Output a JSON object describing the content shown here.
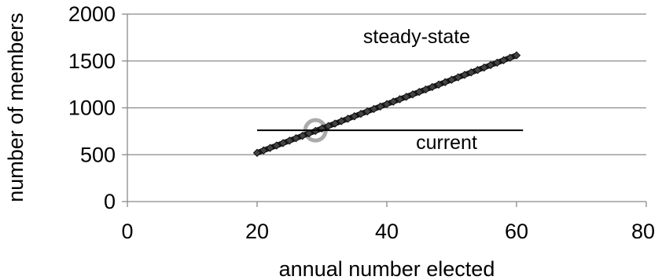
{
  "chart_data": {
    "type": "line",
    "xlabel": "annual number elected",
    "ylabel": "number of members",
    "xlim": [
      0,
      80
    ],
    "ylim": [
      0,
      2000
    ],
    "x_ticks": [
      "0",
      "20",
      "40",
      "60",
      "80"
    ],
    "y_ticks": [
      "0",
      "500",
      "1000",
      "1500",
      "2000"
    ],
    "grid": "horizontal",
    "series": [
      {
        "name": "steady-state",
        "x": [
          20,
          21,
          22,
          23,
          24,
          25,
          26,
          27,
          28,
          29,
          30,
          31,
          32,
          33,
          34,
          35,
          36,
          37,
          38,
          39,
          40,
          41,
          42,
          43,
          44,
          45,
          46,
          47,
          48,
          49,
          50,
          51,
          52,
          53,
          54,
          55,
          56,
          57,
          58,
          59,
          60
        ],
        "y": [
          520,
          546,
          572,
          598,
          624,
          650,
          676,
          702,
          728,
          754,
          780,
          806,
          832,
          858,
          884,
          910,
          936,
          962,
          988,
          1014,
          1040,
          1066,
          1092,
          1118,
          1144,
          1170,
          1196,
          1222,
          1248,
          1274,
          1300,
          1326,
          1352,
          1378,
          1404,
          1430,
          1456,
          1482,
          1508,
          1534,
          1560
        ],
        "color": "#1a1a1a",
        "marker": "diamond"
      },
      {
        "name": "current",
        "x": [
          20,
          61
        ],
        "y": [
          760,
          760
        ],
        "color": "#000000",
        "marker": "none"
      }
    ],
    "annotations": [
      {
        "text": "steady-state",
        "x": 49,
        "y": 1730
      },
      {
        "text": "current",
        "x": 48,
        "y": 620
      }
    ],
    "highlight": {
      "x": 29,
      "y": 760,
      "shape": "circle",
      "color": "#aaaaaa"
    }
  }
}
